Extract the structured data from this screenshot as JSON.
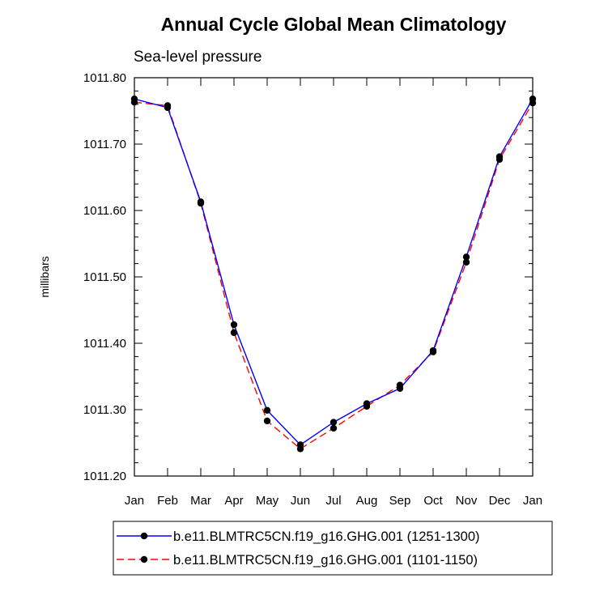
{
  "chart_data": {
    "type": "line",
    "title": "Annual Cycle Global Mean Climatology",
    "subtitle": "Sea-level pressure",
    "xlabel": "",
    "ylabel": "millibars",
    "categories": [
      "Jan",
      "Feb",
      "Mar",
      "Apr",
      "May",
      "Jun",
      "Jul",
      "Aug",
      "Sep",
      "Oct",
      "Nov",
      "Dec",
      "Jan"
    ],
    "ylim": [
      1011.2,
      1011.8
    ],
    "yticks": [
      "1011.80",
      "1011.70",
      "1011.60",
      "1011.50",
      "1011.40",
      "1011.30",
      "1011.20"
    ],
    "grid": false,
    "legend_position": "bottom",
    "series": [
      {
        "name": "b.e11.BLMTRC5CN.f19_g16.GHG.001 (1251-1300)",
        "color": "#0000ff",
        "dash": "solid",
        "values": [
          1011.768,
          1011.755,
          1011.613,
          1011.428,
          1011.299,
          1011.247,
          1011.281,
          1011.309,
          1011.332,
          1011.389,
          1011.53,
          1011.681,
          1011.768
        ]
      },
      {
        "name": "b.e11.BLMTRC5CN.f19_g16.GHG.001 (1101-1150)",
        "color": "#ff0000",
        "dash": "dashed",
        "values": [
          1011.763,
          1011.758,
          1011.611,
          1011.416,
          1011.283,
          1011.241,
          1011.272,
          1011.305,
          1011.337,
          1011.387,
          1011.522,
          1011.677,
          1011.762
        ]
      }
    ]
  }
}
